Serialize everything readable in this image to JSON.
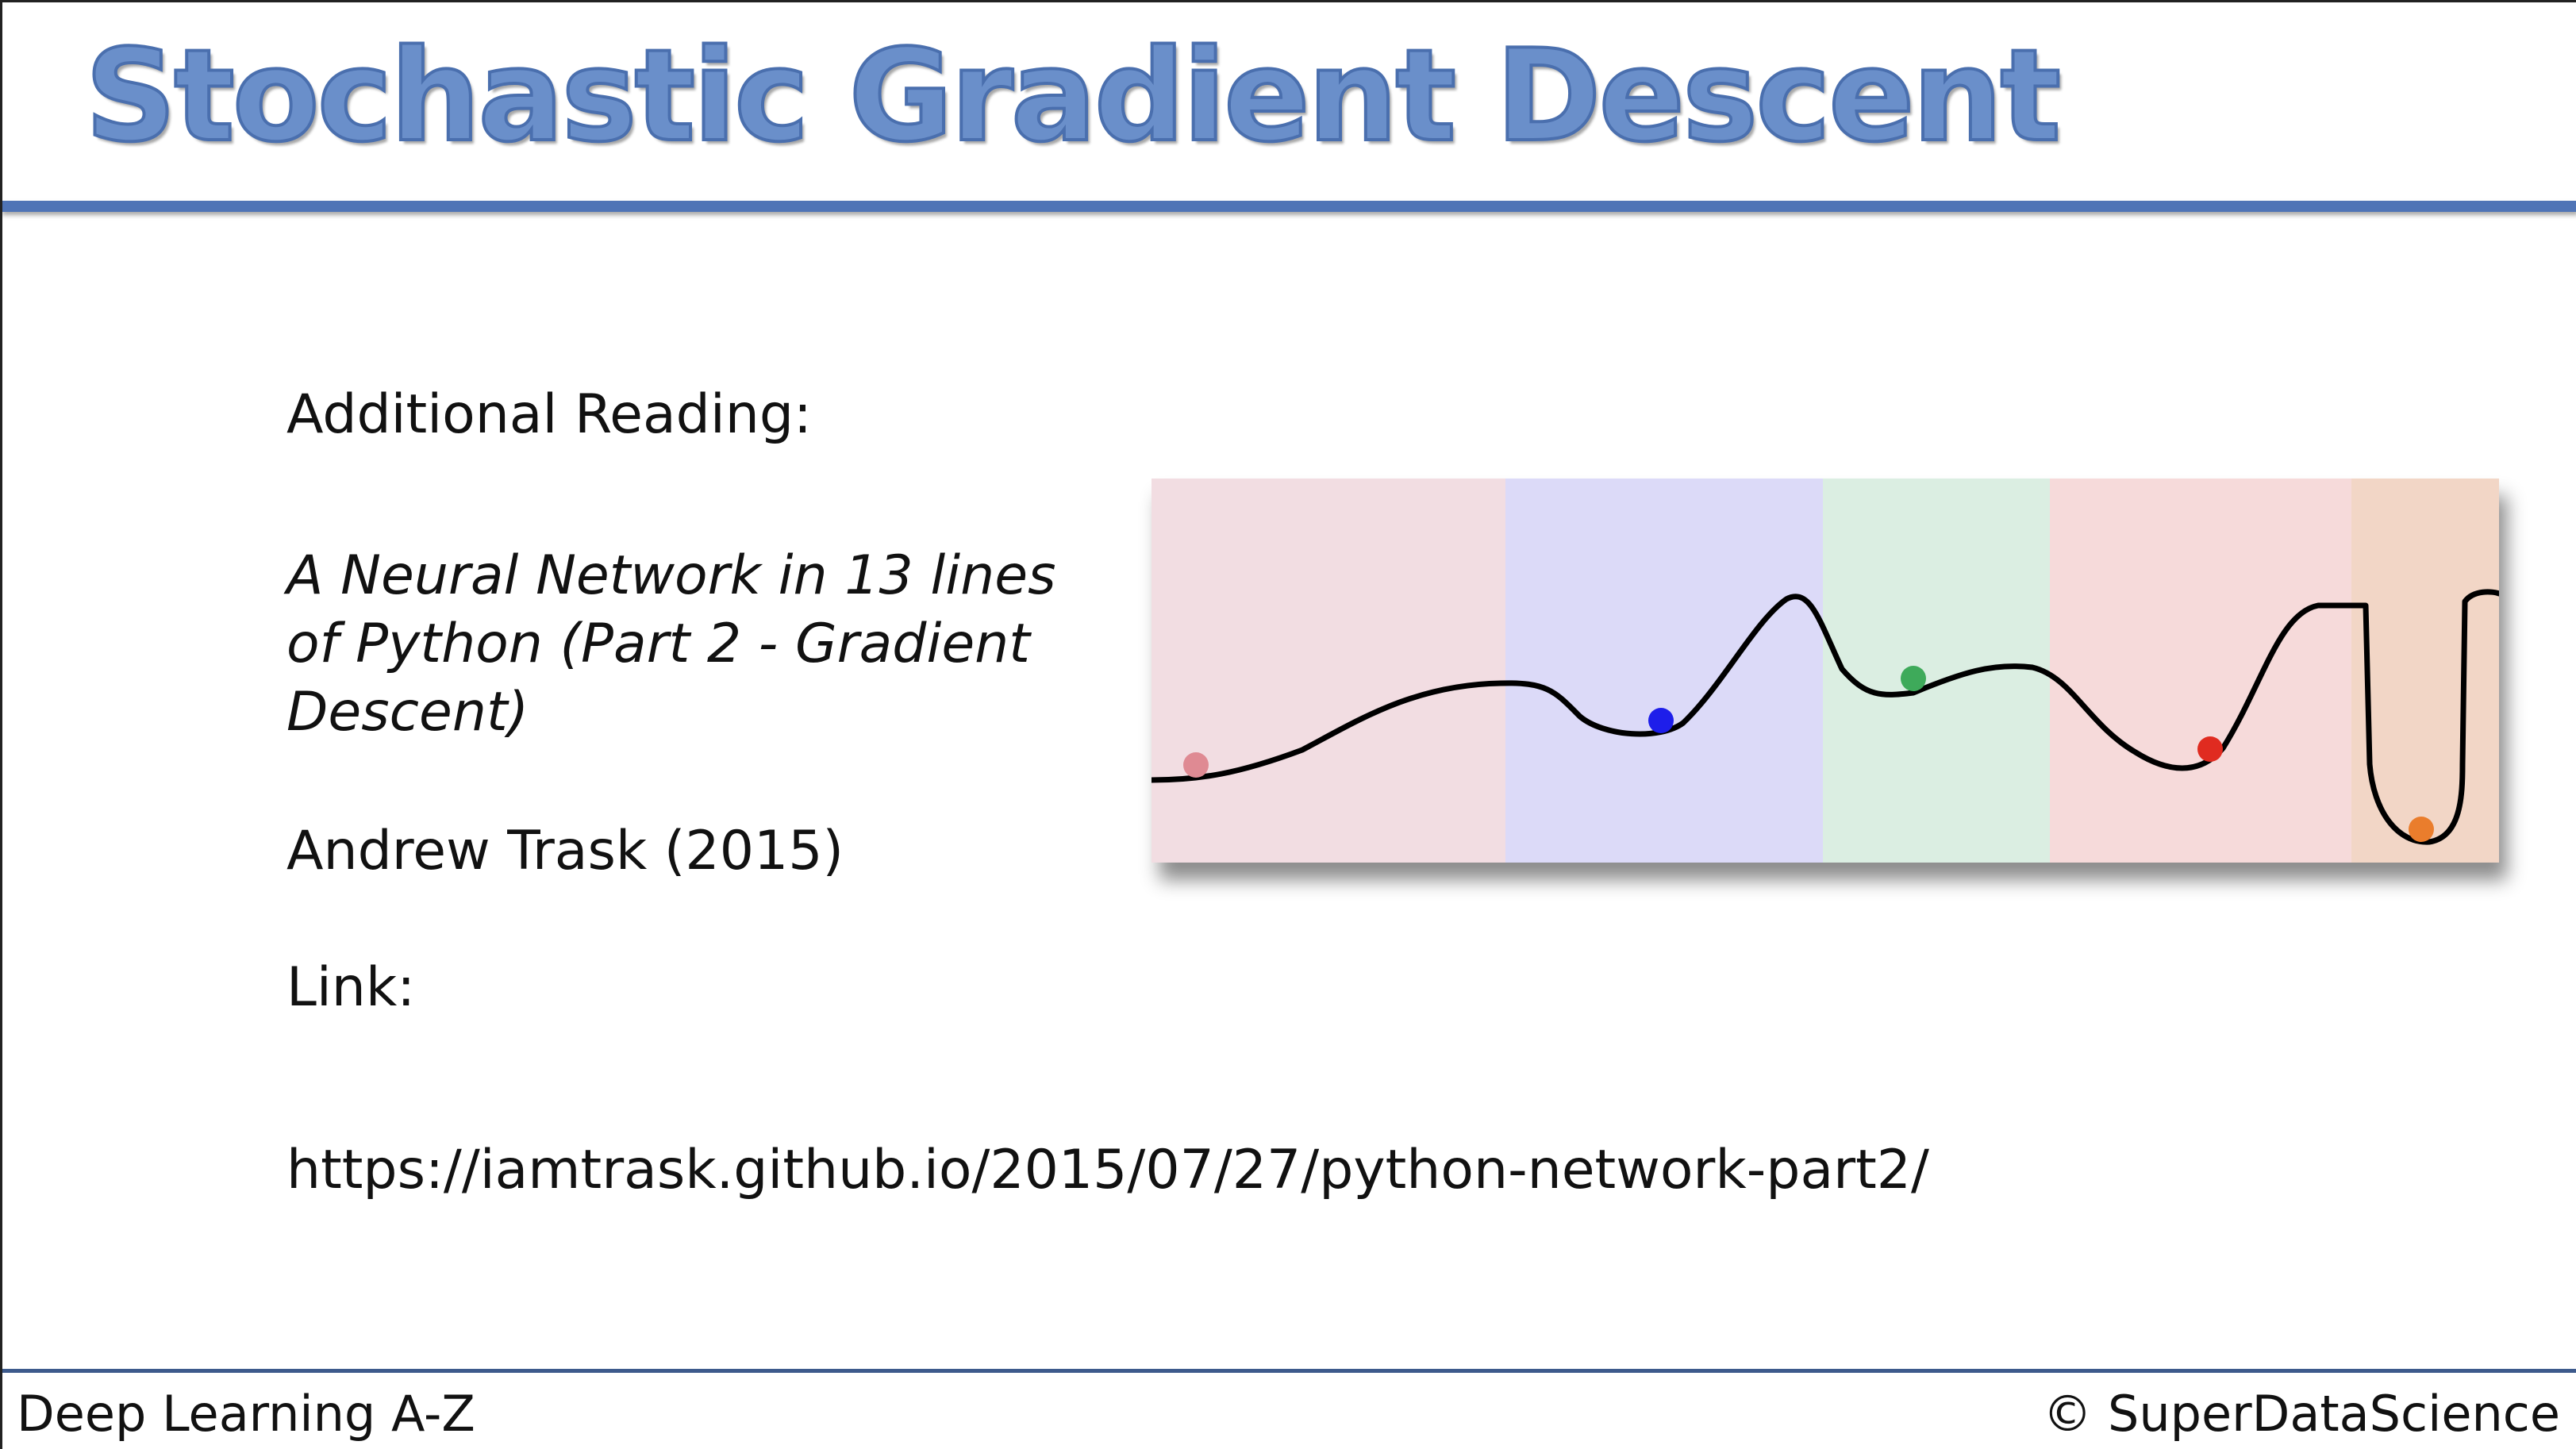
{
  "slide": {
    "title": "Stochastic Gradient Descent",
    "reading_heading": "Additional Reading:",
    "article_title": "A Neural Network in 13 lines of Python (Part 2 - Gradient Descent)",
    "author": "Andrew Trask (2015)",
    "link_label": "Link:",
    "link_url": "https://iamtrask.github.io/2015/07/27/python-network-part2/"
  },
  "figure": {
    "bands": [
      {
        "color": "#f2dde2"
      },
      {
        "color": "#dcdaf8"
      },
      {
        "color": "#dbeee2"
      },
      {
        "color": "#f6dada"
      },
      {
        "color": "#f2d6c6"
      }
    ],
    "balls": [
      {
        "color": "#df8a93"
      },
      {
        "color": "#1e1eea"
      },
      {
        "color": "#3eaa5a"
      },
      {
        "color": "#e02b20"
      },
      {
        "color": "#ea7d2c"
      }
    ]
  },
  "footer": {
    "course": "Deep Learning A-Z",
    "copyright": "© SuperDataScience"
  },
  "colors": {
    "title": "#6a8fca",
    "rule": "#4f74b6"
  }
}
